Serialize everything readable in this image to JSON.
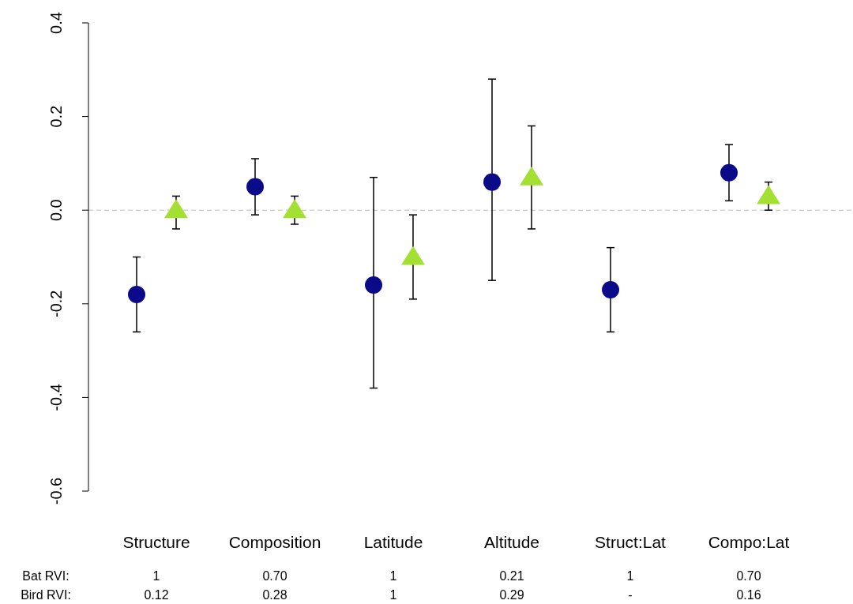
{
  "chart_data": {
    "type": "scatter",
    "categories": [
      "Structure",
      "Composition",
      "Latitude",
      "Altitude",
      "Struct:Lat",
      "Compo:Lat"
    ],
    "series": [
      {
        "color": "#0b0b8a",
        "marker": "circle",
        "values": [
          -0.18,
          0.05,
          -0.16,
          0.06,
          -0.17,
          0.08
        ],
        "errors": [
          [
            -0.26,
            -0.1
          ],
          [
            -0.01,
            0.11
          ],
          [
            -0.38,
            0.07
          ],
          [
            -0.15,
            0.28
          ],
          [
            -0.26,
            -0.08
          ],
          [
            0.02,
            0.14
          ]
        ]
      },
      {
        "color": "#a4e033",
        "marker": "triangle",
        "values": [
          0.0,
          0.0,
          -0.1,
          0.07,
          null,
          0.03
        ],
        "errors": [
          [
            -0.04,
            0.03
          ],
          [
            -0.03,
            0.03
          ],
          [
            -0.19,
            -0.01
          ],
          [
            -0.04,
            0.18
          ],
          null,
          [
            0.0,
            0.06
          ]
        ]
      }
    ],
    "ylim": [
      -0.6,
      0.4
    ],
    "yticks": [
      {
        "value": -0.6,
        "label": "-0.6"
      },
      {
        "value": -0.4,
        "label": "-0.4"
      },
      {
        "value": -0.2,
        "label": "-0.2"
      },
      {
        "value": 0,
        "label": "0.0"
      },
      {
        "value": 0.2,
        "label": "0.2"
      },
      {
        "value": 0.4,
        "label": "0.4"
      }
    ],
    "ref_lines": [
      {
        "axis": "y",
        "value": 0,
        "color": "#bbbbbb",
        "line_style": "dashed"
      }
    ],
    "annotations": [
      "Bat RVI:",
      "1",
      "0.70",
      "1",
      "0.21",
      "1",
      "0.70",
      "Bird RVI:",
      "0.12",
      "0.28",
      "1",
      "0.29",
      "-",
      "0.16"
    ]
  }
}
